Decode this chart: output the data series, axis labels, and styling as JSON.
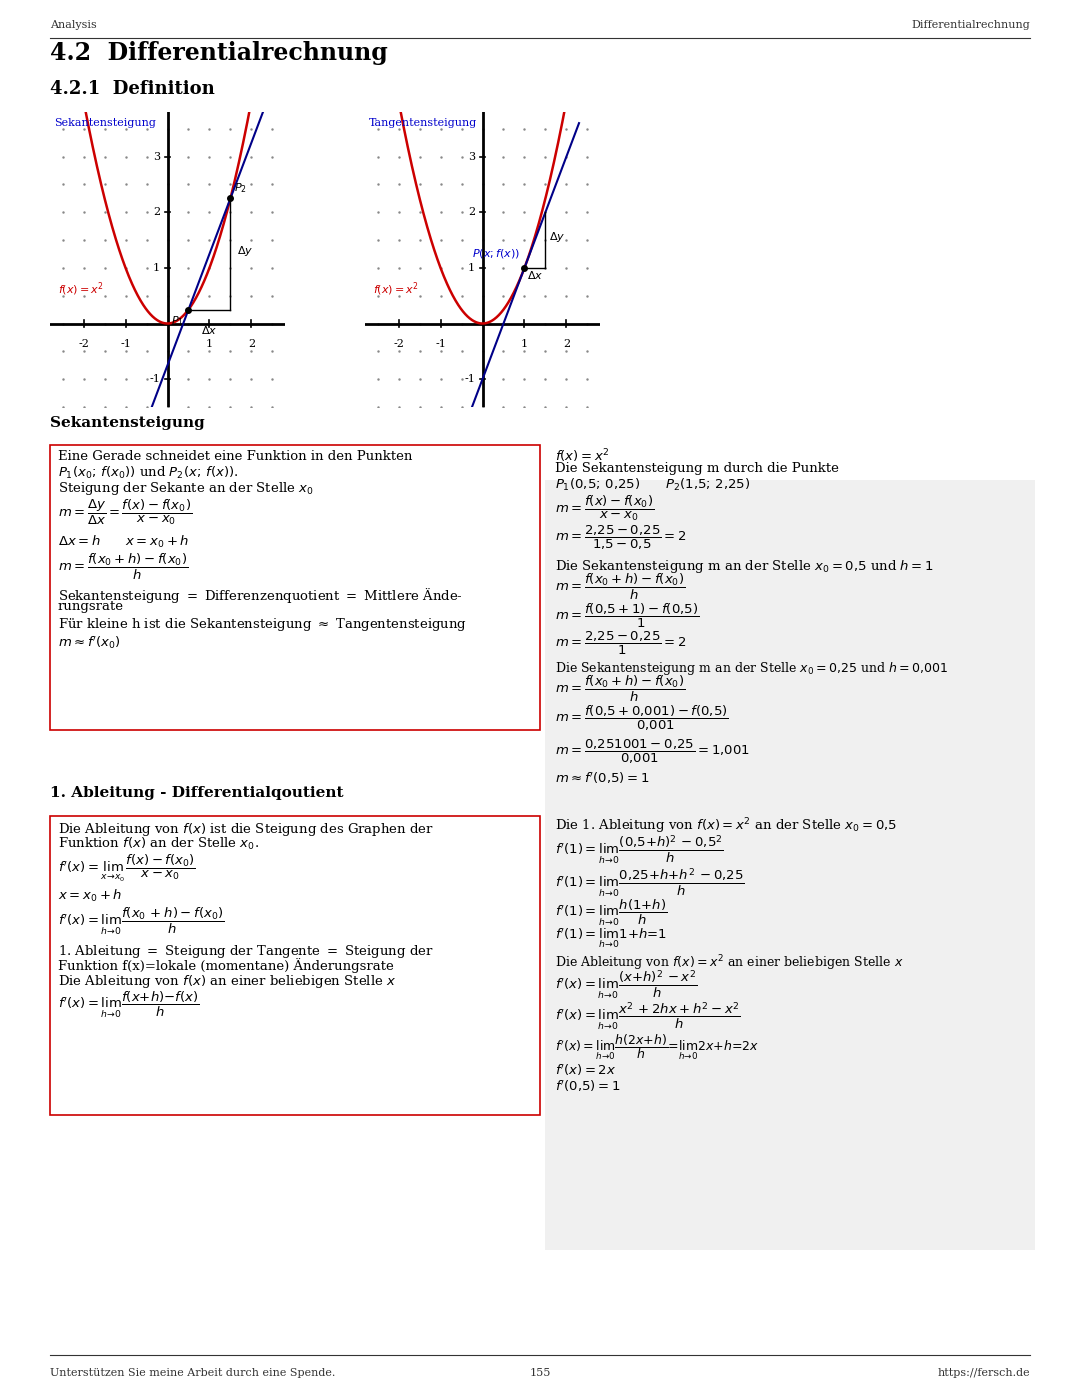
{
  "header_left": "Analysis",
  "header_right": "Differentialrechnung",
  "footer_left": "Unterstützen Sie meine Arbeit durch eine Spende.",
  "footer_center": "155",
  "footer_right": "https://fersch.de",
  "title": "4.2  Differentialrechnung",
  "subtitle": "4.2.1  Definition",
  "section1_title": "Sekantensteigung",
  "section2_title": "1. Ableitung - Differentialqoutient",
  "graph1_label": "Sekantensteigung",
  "graph2_label": "Tangentensteigung",
  "bg_color": "#ffffff",
  "box_border_color": "#cc0000",
  "box_bg_color": "#f5f5f5",
  "text_color": "#000000",
  "blue_color": "#0000cc",
  "red_color": "#cc0000",
  "gray_bg": "#f0f0f0"
}
